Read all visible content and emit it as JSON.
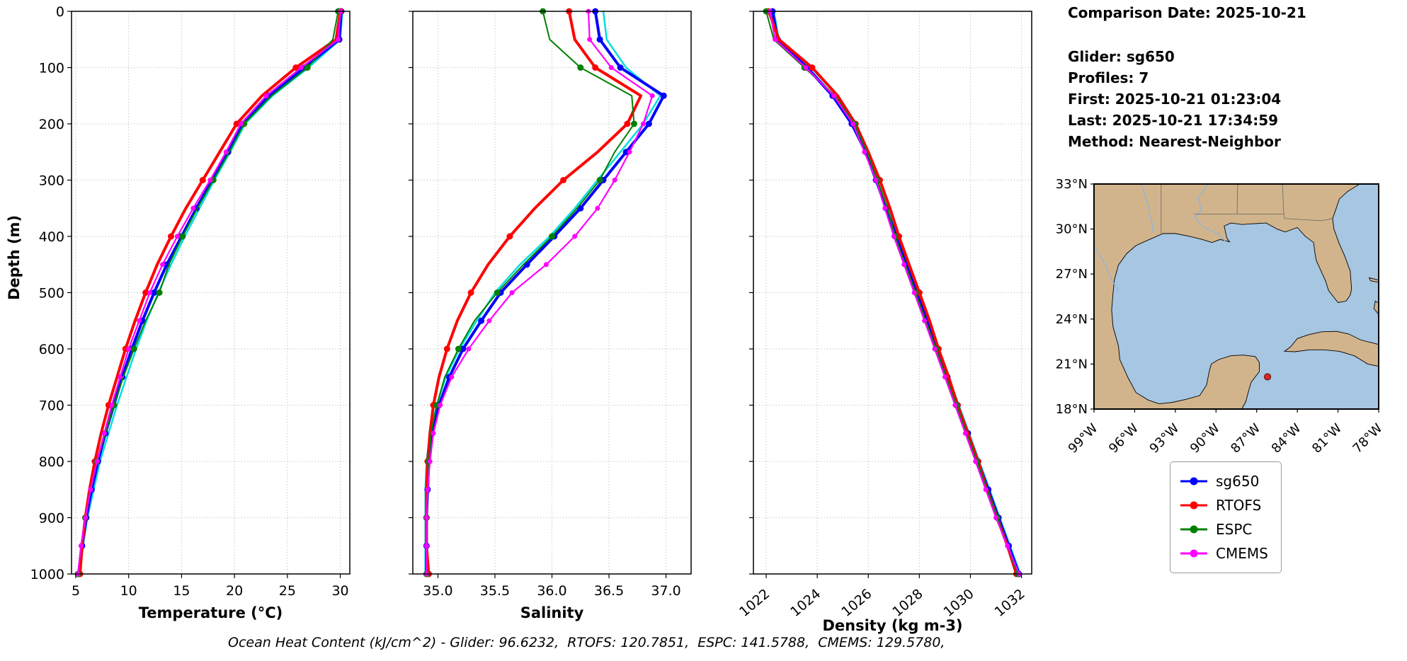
{
  "info_panel": {
    "comparison_date": "Comparison Date: 2025-10-21",
    "glider": "Glider: sg650",
    "profiles": "Profiles: 7",
    "first": "First: 2025-10-21 01:23:04",
    "last": "Last: 2025-10-21 17:34:59",
    "method": "Method: Nearest-Neighbor"
  },
  "caption": "Ocean Heat Content (kJ/cm^2) - Glider: 96.6232,  RTOFS: 120.7851,  ESPC: 141.5788,  CMEMS: 129.5780,",
  "legend": {
    "entries": [
      {
        "label": "sg650",
        "color": "#0000ff"
      },
      {
        "label": "RTOFS",
        "color": "#ff0000"
      },
      {
        "label": "ESPC",
        "color": "#008000"
      },
      {
        "label": "CMEMS",
        "color": "#ff00ff"
      }
    ]
  },
  "map": {
    "colors": {
      "water": "#a6c6e2",
      "land": "#d2b48c"
    },
    "lat_ticks": [
      {
        "v": 33,
        "label": "33°N"
      },
      {
        "v": 30,
        "label": "30°N"
      },
      {
        "v": 27,
        "label": "27°N"
      },
      {
        "v": 24,
        "label": "24°N"
      },
      {
        "v": 21,
        "label": "21°N"
      },
      {
        "v": 18,
        "label": "18°N"
      }
    ],
    "lon_ticks": [
      {
        "v": -99,
        "label": "99°W"
      },
      {
        "v": -96,
        "label": "96°W"
      },
      {
        "v": -93,
        "label": "93°W"
      },
      {
        "v": -90,
        "label": "90°W"
      },
      {
        "v": -87,
        "label": "87°W"
      },
      {
        "v": -84,
        "label": "84°W"
      },
      {
        "v": -81,
        "label": "81°W"
      },
      {
        "v": -78,
        "label": "78°W"
      }
    ],
    "marker": {
      "lon": -86.2,
      "lat": 20.15,
      "color": "#d62728"
    }
  },
  "chart_data": {
    "type": "line",
    "description": "Glider sg650 vertical profiles vs RTOFS / ESPC / CMEMS models, Gulf of Mexico",
    "ylabel": "Depth (m)",
    "ylim": [
      0,
      1000
    ],
    "yticks": [
      0,
      100,
      200,
      300,
      400,
      500,
      600,
      700,
      800,
      900,
      1000
    ],
    "ytick_labels": [
      "0",
      "100",
      "200",
      "300",
      "400",
      "500",
      "600",
      "700",
      "800",
      "900",
      "1000"
    ],
    "grid": true,
    "depths": [
      0,
      50,
      100,
      150,
      200,
      250,
      300,
      350,
      400,
      450,
      500,
      550,
      600,
      650,
      700,
      750,
      800,
      850,
      900,
      950,
      1000
    ],
    "panels": [
      {
        "key": "temperature",
        "xlabel": "Temperature (°C)",
        "xlim": [
          4.6,
          30.9
        ],
        "xticks": [
          5,
          10,
          15,
          20,
          25,
          30
        ],
        "xtick_labels": [
          "5",
          "10",
          "15",
          "20",
          "25",
          "30"
        ],
        "tick_rotation": 0
      },
      {
        "key": "salinity",
        "xlabel": "Salinity",
        "xlim": [
          34.78,
          37.22
        ],
        "xticks": [
          35.0,
          35.5,
          36.0,
          36.5,
          37.0
        ],
        "xtick_labels": [
          "35.0",
          "35.5",
          "36.0",
          "36.5",
          "37.0"
        ],
        "tick_rotation": 0
      },
      {
        "key": "density",
        "xlabel": "Density (kg m-3)",
        "xlim": [
          1021.5,
          1032.4
        ],
        "xticks": [
          1022,
          1024,
          1026,
          1028,
          1030,
          1032
        ],
        "xtick_labels": [
          "1022",
          "1024",
          "1026",
          "1028",
          "1030",
          "1032"
        ],
        "tick_rotation": 40
      }
    ],
    "series": [
      {
        "name": "sg650 individual profiles",
        "color": "#00dede",
        "in_legend": false,
        "line_width": 2.5,
        "marker_every": 0,
        "marker_size": 0,
        "temperature": [
          30.2,
          30.0,
          27.0,
          23.6,
          21.0,
          19.6,
          18.1,
          16.7,
          15.3,
          14.0,
          12.8,
          11.7,
          10.7,
          9.8,
          8.9,
          8.1,
          7.3,
          6.7,
          6.1,
          5.7,
          5.4
        ],
        "salinity": [
          36.45,
          36.48,
          36.65,
          36.95,
          36.8,
          36.6,
          36.4,
          36.2,
          35.98,
          35.72,
          35.5,
          35.34,
          35.19,
          35.07,
          34.99,
          34.93,
          34.9,
          34.89,
          34.89,
          34.89,
          34.89
        ],
        "density": [
          1022.3,
          1022.5,
          1023.65,
          1024.65,
          1025.4,
          1025.95,
          1026.35,
          1026.75,
          1027.15,
          1027.55,
          1027.95,
          1028.35,
          1028.75,
          1029.15,
          1029.55,
          1029.95,
          1030.35,
          1030.75,
          1031.15,
          1031.55,
          1031.95
        ]
      },
      {
        "name": "sg650",
        "color": "#0000ff",
        "in_legend": true,
        "line_width": 4,
        "marker_every": 1,
        "marker_size": 4.5,
        "temperature": [
          30.1,
          29.9,
          26.6,
          23.2,
          20.8,
          19.4,
          17.9,
          16.4,
          15.0,
          13.6,
          12.4,
          11.3,
          10.3,
          9.4,
          8.6,
          7.8,
          7.1,
          6.5,
          6.0,
          5.6,
          5.3
        ],
        "salinity": [
          36.38,
          36.42,
          36.6,
          36.98,
          36.85,
          36.65,
          36.45,
          36.25,
          36.02,
          35.78,
          35.55,
          35.38,
          35.22,
          35.1,
          35.01,
          34.95,
          34.92,
          34.91,
          34.9,
          34.9,
          34.9
        ],
        "density": [
          1022.25,
          1022.45,
          1023.6,
          1024.6,
          1025.35,
          1025.9,
          1026.3,
          1026.7,
          1027.1,
          1027.5,
          1027.9,
          1028.3,
          1028.7,
          1029.1,
          1029.5,
          1029.9,
          1030.3,
          1030.7,
          1031.1,
          1031.5,
          1031.9
        ]
      },
      {
        "name": "RTOFS",
        "color": "#ff0000",
        "in_legend": true,
        "line_width": 4,
        "marker_every": 2,
        "marker_size": 4.5,
        "temperature": [
          30.0,
          29.6,
          25.8,
          22.6,
          20.2,
          18.6,
          17.0,
          15.4,
          14.0,
          12.7,
          11.6,
          10.6,
          9.7,
          8.9,
          8.1,
          7.4,
          6.8,
          6.3,
          5.9,
          5.6,
          5.4
        ],
        "salinity": [
          36.15,
          36.2,
          36.38,
          36.78,
          36.66,
          36.4,
          36.1,
          35.85,
          35.63,
          35.44,
          35.29,
          35.17,
          35.08,
          35.01,
          34.96,
          34.93,
          34.91,
          34.9,
          34.9,
          34.9,
          34.92
        ],
        "density": [
          1022.1,
          1022.5,
          1023.8,
          1024.8,
          1025.5,
          1026.0,
          1026.45,
          1026.85,
          1027.2,
          1027.6,
          1028.0,
          1028.4,
          1028.75,
          1029.15,
          1029.5,
          1029.9,
          1030.3,
          1030.65,
          1031.05,
          1031.45,
          1031.8
        ]
      },
      {
        "name": "ESPC",
        "color": "#008000",
        "in_legend": true,
        "line_width": 2,
        "marker_every": 2,
        "marker_size": 4.5,
        "temperature": [
          29.8,
          29.3,
          26.9,
          23.5,
          20.9,
          19.5,
          18.0,
          16.5,
          15.1,
          13.8,
          12.9,
          11.6,
          10.5,
          9.5,
          8.6,
          7.8,
          7.0,
          6.4,
          5.9,
          5.5,
          5.2
        ],
        "salinity": [
          35.92,
          35.98,
          36.25,
          36.7,
          36.72,
          36.55,
          36.42,
          36.22,
          36.0,
          35.75,
          35.52,
          35.32,
          35.18,
          35.06,
          34.99,
          34.94,
          34.92,
          34.91,
          34.9,
          34.9,
          34.9
        ],
        "density": [
          1022.0,
          1022.3,
          1023.5,
          1024.7,
          1025.45,
          1025.95,
          1026.35,
          1026.75,
          1027.05,
          1027.45,
          1027.85,
          1028.25,
          1028.65,
          1029.05,
          1029.45,
          1029.85,
          1030.25,
          1030.65,
          1031.05,
          1031.45,
          1031.85
        ]
      },
      {
        "name": "CMEMS",
        "color": "#ff00ff",
        "in_legend": true,
        "line_width": 2.2,
        "marker_every": 1,
        "marker_size": 3.5,
        "temperature": [
          30.0,
          29.8,
          26.3,
          23.0,
          20.6,
          19.2,
          17.7,
          16.1,
          14.6,
          13.2,
          12.0,
          11.0,
          10.0,
          9.2,
          8.4,
          7.7,
          7.0,
          6.4,
          5.9,
          5.5,
          5.2
        ],
        "salinity": [
          36.32,
          36.33,
          36.52,
          36.88,
          36.8,
          36.68,
          36.55,
          36.4,
          36.2,
          35.95,
          35.65,
          35.45,
          35.27,
          35.12,
          35.02,
          34.96,
          34.93,
          34.91,
          34.9,
          34.9,
          34.9
        ],
        "density": [
          1022.15,
          1022.35,
          1023.55,
          1024.65,
          1025.4,
          1025.85,
          1026.3,
          1026.65,
          1027.0,
          1027.4,
          1027.8,
          1028.2,
          1028.6,
          1029.0,
          1029.4,
          1029.8,
          1030.2,
          1030.6,
          1031.0,
          1031.45,
          1031.9
        ]
      }
    ]
  }
}
